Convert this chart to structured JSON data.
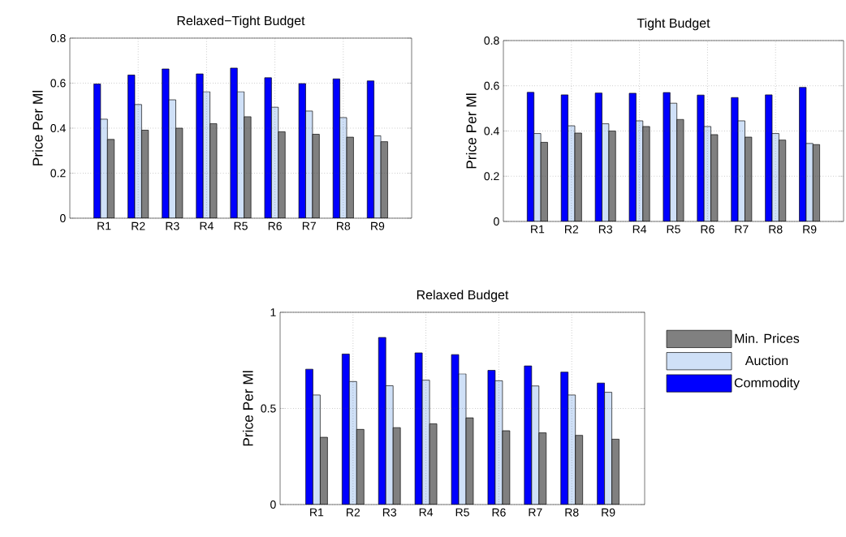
{
  "chart_data": [
    {
      "type": "bar",
      "title": "Relaxed−Tight Budget",
      "ylabel": "Price Per Ml",
      "categories": [
        "R1",
        "R2",
        "R3",
        "R4",
        "R5",
        "R6",
        "R7",
        "R8",
        "R9"
      ],
      "series": [
        {
          "color": "#0000ff",
          "values": [
            0.596,
            0.636,
            0.663,
            0.641,
            0.667,
            0.624,
            0.598,
            0.619,
            0.61
          ]
        },
        {
          "color": "#cfe0f7",
          "values": [
            0.44,
            0.505,
            0.526,
            0.562,
            0.562,
            0.493,
            0.476,
            0.447,
            0.366
          ]
        },
        {
          "color": "#808080",
          "values": [
            0.35,
            0.391,
            0.4,
            0.42,
            0.451,
            0.384,
            0.373,
            0.36,
            0.34
          ]
        }
      ],
      "ylim": [
        0,
        0.8
      ],
      "yticks": [
        0,
        0.2,
        0.4,
        0.6,
        0.8
      ],
      "grid": true,
      "legend": false
    },
    {
      "type": "bar",
      "title": "Tight Budget",
      "ylabel": "Price Per Ml",
      "categories": [
        "R1",
        "R2",
        "R3",
        "R4",
        "R5",
        "R6",
        "R7",
        "R8",
        "R9"
      ],
      "series": [
        {
          "color": "#0000ff",
          "values": [
            0.571,
            0.56,
            0.568,
            0.567,
            0.57,
            0.559,
            0.548,
            0.56,
            0.593
          ]
        },
        {
          "color": "#cfe0f7",
          "values": [
            0.389,
            0.423,
            0.432,
            0.445,
            0.523,
            0.42,
            0.445,
            0.389,
            0.345
          ]
        },
        {
          "color": "#808080",
          "values": [
            0.35,
            0.391,
            0.4,
            0.42,
            0.451,
            0.384,
            0.373,
            0.36,
            0.34
          ]
        }
      ],
      "ylim": [
        0,
        0.8
      ],
      "yticks": [
        0,
        0.2,
        0.4,
        0.6,
        0.8
      ],
      "grid": true,
      "legend": false
    },
    {
      "type": "bar",
      "title": "Relaxed Budget",
      "ylabel": "Price Per Ml",
      "categories": [
        "R1",
        "R2",
        "R3",
        "R4",
        "R5",
        "R6",
        "R7",
        "R8",
        "R9"
      ],
      "series": [
        {
          "name": "Commodity",
          "color": "#0000ff",
          "values": [
            0.704,
            0.783,
            0.869,
            0.789,
            0.78,
            0.698,
            0.721,
            0.689,
            0.632
          ]
        },
        {
          "name": "Auction",
          "color": "#cfe0f7",
          "values": [
            0.57,
            0.64,
            0.618,
            0.647,
            0.68,
            0.644,
            0.617,
            0.57,
            0.584
          ]
        },
        {
          "name": "Min. Prices",
          "color": "#808080",
          "values": [
            0.35,
            0.391,
            0.4,
            0.42,
            0.451,
            0.384,
            0.373,
            0.36,
            0.34
          ]
        }
      ],
      "ylim": [
        0,
        1
      ],
      "yticks": [
        0,
        0.5,
        1
      ],
      "grid": true,
      "legend": "right"
    }
  ]
}
